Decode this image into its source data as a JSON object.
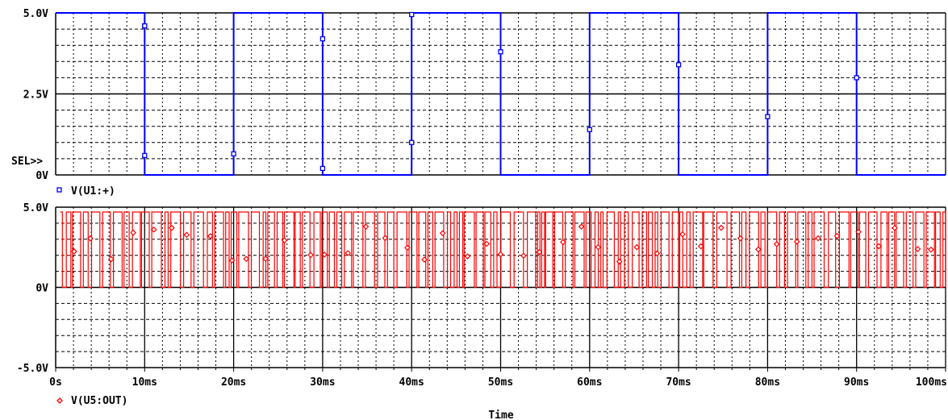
{
  "chart_data": [
    {
      "type": "line",
      "panel": "top",
      "ylim": [
        0,
        5.0
      ],
      "ytick_labels": [
        "5.0V",
        "2.5V",
        "0V"
      ],
      "yticks": [
        5.0,
        2.5,
        0
      ],
      "sel_label": "SEL>>",
      "legend_marker": "blue-square",
      "color": "#0000ff",
      "series": [
        {
          "name": "V(U1:+)",
          "x_ms": [
            0,
            10,
            10,
            20,
            20,
            30,
            30,
            40,
            40,
            50,
            50,
            60,
            60,
            70,
            70,
            80,
            80,
            90,
            90,
            100
          ],
          "y": [
            5,
            5,
            0,
            0,
            5,
            5,
            0,
            0,
            5,
            5,
            0,
            0,
            5,
            5,
            0,
            0,
            5,
            5,
            0,
            0
          ]
        }
      ],
      "markers": [
        {
          "x_ms": 10.0,
          "y": 4.6
        },
        {
          "x_ms": 10.0,
          "y": 0.6
        },
        {
          "x_ms": 10.0,
          "y": 4.6
        },
        {
          "x_ms": 20.0,
          "y": 0.65
        },
        {
          "x_ms": 30.0,
          "y": 4.2
        },
        {
          "x_ms": 30.0,
          "y": 0.2
        },
        {
          "x_ms": 40.0,
          "y": 4.95
        },
        {
          "x_ms": 40.0,
          "y": 1.0
        },
        {
          "x_ms": 50.0,
          "y": 3.8
        },
        {
          "x_ms": 60.0,
          "y": 1.4
        },
        {
          "x_ms": 70.0,
          "y": 3.4
        },
        {
          "x_ms": 80.0,
          "y": 1.8
        },
        {
          "x_ms": 90.0,
          "y": 3.0
        }
      ]
    },
    {
      "type": "line",
      "panel": "bottom",
      "ylim": [
        -5.0,
        5.0
      ],
      "ytick_labels": [
        "5.0V",
        "0V",
        "-5.0V"
      ],
      "yticks": [
        5.0,
        0,
        -5.0
      ],
      "legend_marker": "red-diamond",
      "color": "#ff0000",
      "series": [
        {
          "name": "V(U5:OUT)",
          "high": 4.7,
          "low": 0,
          "x_start_ms": 0.5,
          "x_end_ms": 100
        }
      ],
      "xlim": [
        0,
        100
      ],
      "xticks": [
        0,
        10,
        20,
        30,
        40,
        50,
        60,
        70,
        80,
        90,
        100
      ],
      "xtick_labels": [
        "0s",
        "10ms",
        "20ms",
        "30ms",
        "40ms",
        "50ms",
        "60ms",
        "70ms",
        "80ms",
        "90ms",
        "100ms"
      ],
      "xlabel": "Time"
    }
  ]
}
